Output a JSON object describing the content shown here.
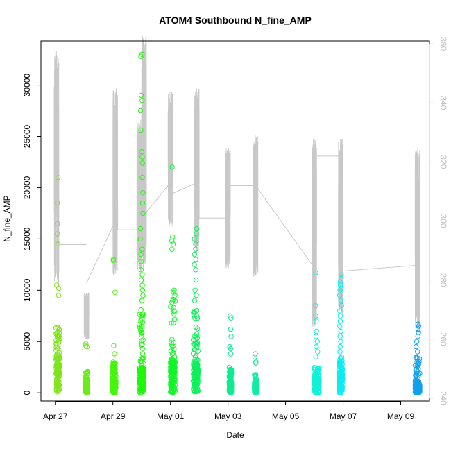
{
  "chart_data": {
    "type": "scatter",
    "title": "ATOM4 Southbound N_fine_AMP",
    "xlabel": "Date",
    "ylabel": "N_fine_AMP",
    "x_ticks": [
      "Apr 27",
      "Apr 29",
      "May 01",
      "May 03",
      "May 05",
      "May 07",
      "May 09"
    ],
    "y_ticks": [
      "0",
      "5000",
      "10000",
      "15000",
      "20000",
      "25000",
      "30000"
    ],
    "y2_ticks": [
      "240",
      "260",
      "280",
      "300",
      "320",
      "340",
      "360"
    ],
    "xlim": [
      "2018-04-26T12:00",
      "2018-05-10T00:00"
    ],
    "ylim": [
      -800,
      34300
    ],
    "y2lim": [
      239,
      361
    ],
    "grid": false,
    "legend": "none",
    "point_series": {
      "name": "N_fine_AMP",
      "color_by": "longitude",
      "clusters": [
        {
          "date": "2018-04-27T02:00",
          "width_h": 3,
          "median": 1800,
          "max": 6500,
          "color": "#7fe51b",
          "outliers": [
            21000,
            18500,
            16500,
            15500,
            14500,
            10500,
            10200,
            9500
          ]
        },
        {
          "date": "2018-04-28T02:00",
          "width_h": 2,
          "median": 500,
          "max": 2200,
          "color": "#6aec16",
          "outliers": [
            4800,
            4600,
            4500
          ]
        },
        {
          "date": "2018-04-29T01:00",
          "width_h": 3,
          "median": 800,
          "max": 3000,
          "color": "#45f50d",
          "outliers": [
            13000,
            12900,
            9800,
            4600,
            3800
          ]
        },
        {
          "date": "2018-04-30T00:00",
          "width_h": 4,
          "median": 1500,
          "max": 8500,
          "color": "#1ff70a",
          "outliers": [
            33000,
            32800,
            29000,
            28500,
            27500,
            25600,
            23500,
            23000,
            22400,
            21000,
            19500,
            18500,
            17500,
            16000,
            15000,
            14000,
            13500,
            12800,
            12000,
            11500,
            11000,
            10500,
            10000,
            9500,
            9000
          ]
        },
        {
          "date": "2018-05-01T02:00",
          "width_h": 4,
          "median": 2000,
          "max": 9500,
          "color": "#12f528",
          "outliers": [
            22000,
            15200,
            14800,
            14500,
            14000,
            10000,
            9800
          ]
        },
        {
          "date": "2018-05-01T21:00",
          "width_h": 4,
          "median": 1800,
          "max": 8500,
          "color": "#0cf05a",
          "outliers": [
            16000,
            15500,
            15000,
            14500,
            14000,
            13500,
            13000,
            12500,
            12000,
            11000,
            10000,
            9500,
            9000
          ]
        },
        {
          "date": "2018-05-03T02:00",
          "width_h": 2,
          "median": 700,
          "max": 2500,
          "color": "#0eeb90",
          "outliers": [
            7500,
            7300,
            6200,
            5500,
            4500,
            4300,
            3800
          ]
        },
        {
          "date": "2018-05-03T23:00",
          "width_h": 2,
          "median": 500,
          "max": 1800,
          "color": "#12eca4",
          "outliers": [
            3800,
            3500,
            3000,
            2900
          ]
        },
        {
          "date": "2018-05-06T02:00",
          "width_h": 4,
          "median": 900,
          "max": 2500,
          "color": "#10f2d6",
          "outliers": [
            11700,
            8500,
            7500,
            7000,
            6000,
            5500,
            5000,
            4500,
            4000,
            3500
          ]
        },
        {
          "date": "2018-05-06T22:00",
          "width_h": 3,
          "median": 1200,
          "max": 3500,
          "color": "#0cecf2",
          "outliers": [
            11500,
            11200,
            10800,
            10500,
            10200,
            10000,
            9500,
            9000,
            8500,
            8000,
            7500,
            7000,
            6500,
            6000,
            5500,
            5000,
            4500,
            4000
          ]
        },
        {
          "date": "2018-05-09T14:00",
          "width_h": 4,
          "median": 500,
          "max": 3500,
          "color": "#11a1eb",
          "outliers": [
            6700,
            6500,
            6200,
            5900,
            5500,
            5000,
            4500,
            4000
          ]
        }
      ]
    },
    "line_series": {
      "name": "secondary axis",
      "color": "#c8c8c8",
      "bursts": [
        {
          "date": "2018-04-27T01:00",
          "lo": 278,
          "hi": 358,
          "end": 292
        },
        {
          "date": "2018-04-28T02:00",
          "lo": 260,
          "hi": 276,
          "end": 268
        },
        {
          "date": "2018-04-29T02:00",
          "lo": 281,
          "hi": 345,
          "end": 297
        },
        {
          "date": "2018-04-29T22:00",
          "lo": 283,
          "hi": 336,
          "end": 296
        },
        {
          "date": "2018-04-30T02:00",
          "lo": 284,
          "hi": 363,
          "end": 302
        },
        {
          "date": "2018-05-01T00:00",
          "lo": 298,
          "hi": 344,
          "end": 306
        },
        {
          "date": "2018-05-01T22:00",
          "lo": 289,
          "hi": 345,
          "end": 301
        },
        {
          "date": "2018-05-03T00:00",
          "lo": 284,
          "hi": 325,
          "end": 312
        },
        {
          "date": "2018-05-03T23:00",
          "lo": 281,
          "hi": 329,
          "end": 297
        },
        {
          "date": "2018-05-06T00:00",
          "lo": 264,
          "hi": 328,
          "end": 314
        },
        {
          "date": "2018-05-06T22:00",
          "lo": 268,
          "hi": 328,
          "end": 280
        },
        {
          "date": "2018-05-09T14:00",
          "lo": 262,
          "hi": 325,
          "end": 315
        }
      ],
      "connectors": [
        {
          "from": "2018-04-27T01:00",
          "to": "2018-04-28T02:00",
          "y": 292
        },
        {
          "from": "2018-04-28T02:00",
          "to": "2018-04-29T02:00",
          "y1": 279,
          "y2": 300
        },
        {
          "from": "2018-04-29T02:00",
          "to": "2018-04-30T02:00",
          "y": 297
        },
        {
          "from": "2018-04-30T02:00",
          "to": "2018-05-01T00:00",
          "y1": 302,
          "y2": 313
        },
        {
          "from": "2018-05-01T00:00",
          "to": "2018-05-01T22:00",
          "y1": 309,
          "y2": 313
        },
        {
          "from": "2018-05-01T22:00",
          "to": "2018-05-03T00:00",
          "y": 301
        },
        {
          "from": "2018-05-03T00:00",
          "to": "2018-05-03T23:00",
          "y": 312
        },
        {
          "from": "2018-05-03T23:00",
          "to": "2018-05-06T02:00",
          "y1": 312,
          "y2": 283
        },
        {
          "from": "2018-05-06T00:00",
          "to": "2018-05-06T22:00",
          "y": 322
        },
        {
          "from": "2018-05-06T22:00",
          "to": "2018-05-09T14:00",
          "y1": 283,
          "y2": 285
        }
      ]
    }
  }
}
